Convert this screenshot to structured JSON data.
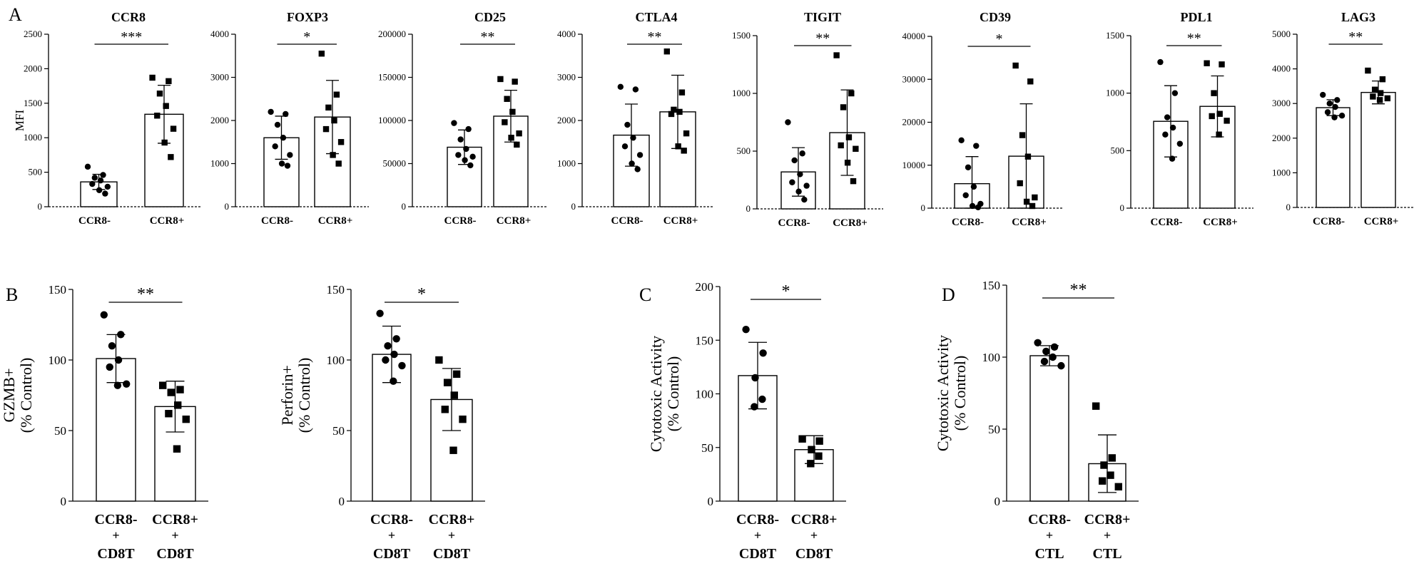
{
  "panel_letters": [
    "A",
    "B",
    "C",
    "D"
  ],
  "chart_data": [
    {
      "type": "bar",
      "panel": "A",
      "title": "CCR8",
      "ylabel": "MFI",
      "ylim": [
        0,
        2500
      ],
      "ticks": [
        0,
        500,
        1000,
        1500,
        2000,
        2500
      ],
      "tick_labels": [
        "0",
        "500",
        "1000",
        "1500",
        "2000",
        "2500"
      ],
      "categories": [
        "CCR8-",
        "CCR8+"
      ],
      "series": [
        {
          "name": "CCR8-",
          "mean": 360,
          "sd": 110,
          "marker": "circle",
          "points": [
            580,
            460,
            420,
            380,
            330,
            290,
            240,
            190
          ]
        },
        {
          "name": "CCR8+",
          "mean": 1340,
          "sd": 420,
          "marker": "square",
          "points": [
            1870,
            1820,
            1640,
            1460,
            1320,
            1130,
            930,
            720
          ]
        }
      ],
      "significance": "***"
    },
    {
      "type": "bar",
      "panel": "A",
      "title": "FOXP3",
      "ylabel": "",
      "ylim": [
        0,
        4000
      ],
      "ticks": [
        0,
        1000,
        2000,
        3000,
        4000
      ],
      "tick_labels": [
        "0",
        "1000",
        "2000",
        "3000",
        "4000"
      ],
      "categories": [
        "CCR8-",
        "CCR8+"
      ],
      "series": [
        {
          "name": "CCR8-",
          "mean": 1600,
          "sd": 500,
          "marker": "circle",
          "points": [
            2200,
            2150,
            1900,
            1600,
            1400,
            1200,
            1000,
            950
          ]
        },
        {
          "name": "CCR8+",
          "mean": 2080,
          "sd": 850,
          "marker": "square",
          "points": [
            3550,
            2600,
            2300,
            2000,
            1800,
            1500,
            1200,
            1000
          ]
        }
      ],
      "significance": "*"
    },
    {
      "type": "bar",
      "panel": "A",
      "title": "CD25",
      "ylabel": "",
      "ylim": [
        0,
        200000
      ],
      "ticks": [
        0,
        50000,
        100000,
        150000,
        200000
      ],
      "tick_labels": [
        "0",
        "50000",
        "100000",
        "150000",
        "200000"
      ],
      "categories": [
        "CCR8-",
        "CCR8+"
      ],
      "series": [
        {
          "name": "CCR8-",
          "mean": 69000,
          "sd": 20000,
          "marker": "circle",
          "points": [
            97000,
            90000,
            78000,
            67000,
            60000,
            58000,
            54000,
            48000
          ]
        },
        {
          "name": "CCR8+",
          "mean": 105000,
          "sd": 30000,
          "marker": "square",
          "points": [
            148000,
            145000,
            125000,
            110000,
            98000,
            85000,
            80000,
            72000
          ]
        }
      ],
      "significance": "**"
    },
    {
      "type": "bar",
      "panel": "A",
      "title": "CTLA4",
      "ylabel": "",
      "ylim": [
        0,
        4000
      ],
      "ticks": [
        0,
        1000,
        2000,
        3000,
        4000
      ],
      "tick_labels": [
        "0",
        "1000",
        "2000",
        "3000",
        "4000"
      ],
      "categories": [
        "CCR8-",
        "CCR8+"
      ],
      "series": [
        {
          "name": "CCR8-",
          "mean": 1660,
          "sd": 720,
          "marker": "circle",
          "points": [
            2780,
            2720,
            1900,
            1600,
            1400,
            1200,
            1000,
            870
          ]
        },
        {
          "name": "CCR8+",
          "mean": 2200,
          "sd": 850,
          "marker": "square",
          "points": [
            3600,
            2650,
            2250,
            2200,
            2150,
            1700,
            1400,
            1300
          ]
        }
      ],
      "significance": "**"
    },
    {
      "type": "bar",
      "panel": "A",
      "title": "TIGIT",
      "ylabel": "",
      "ylim": [
        0,
        1500
      ],
      "ticks": [
        0,
        500,
        1000,
        1500
      ],
      "tick_labels": [
        "0",
        "500",
        "1000",
        "1500"
      ],
      "categories": [
        "CCR8-",
        "CCR8+"
      ],
      "series": [
        {
          "name": "CCR8-",
          "mean": 320,
          "sd": 210,
          "marker": "circle",
          "points": [
            750,
            480,
            420,
            300,
            230,
            200,
            150,
            80
          ]
        },
        {
          "name": "CCR8+",
          "mean": 660,
          "sd": 370,
          "marker": "square",
          "points": [
            1330,
            1000,
            880,
            620,
            550,
            520,
            400,
            240
          ]
        }
      ],
      "significance": "**"
    },
    {
      "type": "bar",
      "panel": "A",
      "title": "CD39",
      "ylabel": "",
      "ylim": [
        0,
        40000
      ],
      "ticks": [
        0,
        10000,
        20000,
        30000,
        40000
      ],
      "tick_labels": [
        "0",
        "10000",
        "20000",
        "30000",
        "40000"
      ],
      "categories": [
        "CCR8-",
        "CCR8+"
      ],
      "series": [
        {
          "name": "CCR8-",
          "mean": 5700,
          "sd": 6300,
          "marker": "circle",
          "points": [
            15800,
            14500,
            9500,
            5000,
            3000,
            1000,
            500,
            200
          ]
        },
        {
          "name": "CCR8+",
          "mean": 12100,
          "sd": 12200,
          "marker": "square",
          "points": [
            33200,
            29500,
            17000,
            12000,
            5800,
            2500,
            1500,
            500
          ]
        }
      ],
      "significance": "*"
    },
    {
      "type": "bar",
      "panel": "A",
      "title": "PDL1",
      "ylabel": "",
      "ylim": [
        0,
        1500
      ],
      "ticks": [
        0,
        500,
        1000,
        1500
      ],
      "tick_labels": [
        "0",
        "500",
        "1000",
        "1500"
      ],
      "categories": [
        "CCR8-",
        "CCR8+"
      ],
      "series": [
        {
          "name": "CCR8-",
          "mean": 755,
          "sd": 310,
          "marker": "circle",
          "points": [
            1270,
            1000,
            790,
            700,
            640,
            560,
            430
          ]
        },
        {
          "name": "CCR8+",
          "mean": 885,
          "sd": 265,
          "marker": "square",
          "points": [
            1260,
            1250,
            1000,
            820,
            800,
            760,
            640
          ]
        }
      ],
      "significance": "**"
    },
    {
      "type": "bar",
      "panel": "A",
      "title": "LAG3",
      "ylabel": "",
      "ylim": [
        0,
        5000
      ],
      "ticks": [
        0,
        1000,
        2000,
        3000,
        4000,
        5000
      ],
      "tick_labels": [
        "0",
        "1000",
        "2000",
        "3000",
        "4000",
        "5000"
      ],
      "categories": [
        "CCR8-",
        "CCR8+"
      ],
      "series": [
        {
          "name": "CCR8-",
          "mean": 2880,
          "sd": 230,
          "marker": "circle",
          "points": [
            3250,
            3100,
            3000,
            2900,
            2750,
            2650,
            2600
          ]
        },
        {
          "name": "CCR8+",
          "mean": 3320,
          "sd": 330,
          "marker": "square",
          "points": [
            3950,
            3700,
            3400,
            3300,
            3200,
            3150,
            3100
          ]
        }
      ],
      "significance": "**"
    },
    {
      "type": "bar",
      "panel": "B",
      "title": "",
      "ylabel": "GZMB+",
      "ylabel2": "(% Control)",
      "ylim": [
        0,
        150
      ],
      "ticks": [
        0,
        50,
        100,
        150
      ],
      "tick_labels": [
        "0",
        "50",
        "100",
        "150"
      ],
      "categories": [
        "CCR8-",
        "CCR8+"
      ],
      "category_sublabels": [
        "+",
        "CD8T"
      ],
      "series": [
        {
          "name": "CCR8-",
          "mean": 101,
          "sd": 17,
          "marker": "circle",
          "points": [
            132,
            118,
            110,
            100,
            95,
            83,
            82
          ]
        },
        {
          "name": "CCR8+",
          "mean": 67,
          "sd": 18,
          "marker": "square",
          "points": [
            82,
            79,
            77,
            68,
            62,
            58,
            37
          ]
        }
      ],
      "significance": "**"
    },
    {
      "type": "bar",
      "panel": "B",
      "title": "",
      "ylabel": "Perforin+",
      "ylabel2": "(% Control)",
      "ylim": [
        0,
        150
      ],
      "ticks": [
        0,
        50,
        100,
        150
      ],
      "tick_labels": [
        "0",
        "50",
        "100",
        "150"
      ],
      "categories": [
        "CCR8-",
        "CCR8+"
      ],
      "category_sublabels": [
        "+",
        "CD8T"
      ],
      "series": [
        {
          "name": "CCR8-",
          "mean": 104,
          "sd": 20,
          "marker": "circle",
          "points": [
            133,
            115,
            110,
            104,
            100,
            96,
            85
          ]
        },
        {
          "name": "CCR8+",
          "mean": 72,
          "sd": 22,
          "marker": "square",
          "points": [
            100,
            90,
            84,
            75,
            65,
            58,
            36
          ]
        }
      ],
      "significance": "*"
    },
    {
      "type": "bar",
      "panel": "C",
      "title": "",
      "ylabel": "Cytotoxic Activity",
      "ylabel2": "(% Control)",
      "ylim": [
        0,
        200
      ],
      "ticks": [
        0,
        50,
        100,
        150,
        200
      ],
      "tick_labels": [
        "0",
        "50",
        "100",
        "150",
        "200"
      ],
      "categories": [
        "CCR8-",
        "CCR8+"
      ],
      "category_sublabels": [
        "+",
        "CD8T"
      ],
      "series": [
        {
          "name": "CCR8-",
          "mean": 117,
          "sd": 31,
          "marker": "circle",
          "points": [
            160,
            138,
            115,
            95,
            88
          ]
        },
        {
          "name": "CCR8+",
          "mean": 48,
          "sd": 13,
          "marker": "square",
          "points": [
            58,
            56,
            48,
            42,
            35
          ]
        }
      ],
      "significance": "*"
    },
    {
      "type": "bar",
      "panel": "D",
      "title": "",
      "ylabel": "Cytotoxic Activity",
      "ylabel2": "(% Control)",
      "ylim": [
        0,
        150
      ],
      "ticks": [
        0,
        50,
        100,
        150
      ],
      "tick_labels": [
        "0",
        "50",
        "100",
        "150"
      ],
      "categories": [
        "CCR8-",
        "CCR8+"
      ],
      "category_sublabels": [
        "+",
        "CTL"
      ],
      "series": [
        {
          "name": "CCR8-",
          "mean": 101,
          "sd": 7,
          "marker": "circle",
          "points": [
            110,
            107,
            104,
            100,
            97,
            94
          ]
        },
        {
          "name": "CCR8+",
          "mean": 26,
          "sd": 20,
          "marker": "square",
          "points": [
            66,
            30,
            25,
            18,
            14,
            10
          ]
        }
      ],
      "significance": "**"
    }
  ]
}
